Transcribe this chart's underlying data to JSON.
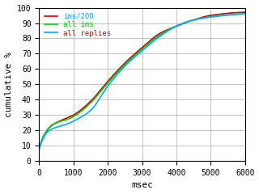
{
  "title": "",
  "xlabel": "msec",
  "ylabel": "cumulative %",
  "xlim": [
    0,
    6000
  ],
  "ylim": [
    0,
    100
  ],
  "xticks": [
    0,
    1000,
    2000,
    3000,
    4000,
    5000,
    6000
  ],
  "yticks": [
    0,
    10,
    20,
    30,
    40,
    50,
    60,
    70,
    80,
    90,
    100
  ],
  "legend": [
    {
      "label": "all replies",
      "color": "#00aaff"
    },
    {
      "label": "all ims",
      "color": "#00cc00"
    },
    {
      "label": "ims/200",
      "color": "#cc0000"
    }
  ],
  "background_color": "#ffffff",
  "grid_color": "#aaaaaa",
  "font_color": "#000000",
  "line_width": 1.2,
  "curve_points": {
    "all_ims": [
      [
        0,
        8
      ],
      [
        100,
        15
      ],
      [
        200,
        19
      ],
      [
        300,
        22
      ],
      [
        500,
        25
      ],
      [
        800,
        27
      ],
      [
        1000,
        29
      ],
      [
        1500,
        38
      ],
      [
        2000,
        51
      ],
      [
        2500,
        63
      ],
      [
        3000,
        73
      ],
      [
        3500,
        82
      ],
      [
        4000,
        88
      ],
      [
        4500,
        92
      ],
      [
        5000,
        94
      ],
      [
        6000,
        96
      ]
    ],
    "ims200": [
      [
        0,
        8
      ],
      [
        100,
        15
      ],
      [
        200,
        19
      ],
      [
        300,
        22
      ],
      [
        500,
        25
      ],
      [
        800,
        28
      ],
      [
        1000,
        30
      ],
      [
        1500,
        39
      ],
      [
        2000,
        52
      ],
      [
        2500,
        64
      ],
      [
        3000,
        74
      ],
      [
        3500,
        83
      ],
      [
        4000,
        88
      ],
      [
        4500,
        92
      ],
      [
        5000,
        95
      ],
      [
        6000,
        97
      ]
    ],
    "all_replies": [
      [
        0,
        8
      ],
      [
        100,
        14
      ],
      [
        200,
        18
      ],
      [
        300,
        20
      ],
      [
        500,
        22
      ],
      [
        800,
        24
      ],
      [
        1000,
        26
      ],
      [
        1500,
        33
      ],
      [
        2000,
        49
      ],
      [
        2500,
        62
      ],
      [
        3000,
        72
      ],
      [
        3500,
        81
      ],
      [
        4000,
        88
      ],
      [
        4500,
        92
      ],
      [
        5000,
        94
      ],
      [
        6000,
        96
      ]
    ]
  }
}
